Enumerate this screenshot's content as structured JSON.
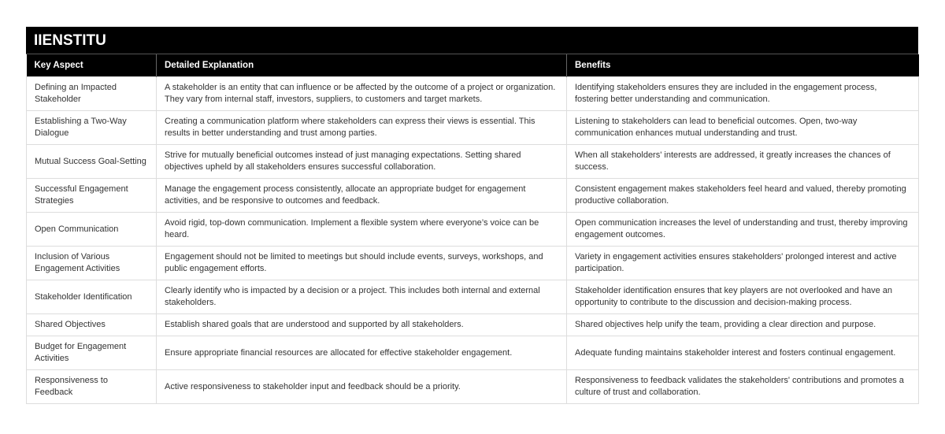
{
  "title": "IIENSTITU",
  "headers": [
    "Key Aspect",
    "Detailed Explanation",
    "Benefits"
  ],
  "rows": [
    {
      "aspect": "Defining an Impacted Stakeholder",
      "explanation": "A stakeholder is an entity that can influence or be affected by the outcome of a project or organization. They vary from internal staff, investors, suppliers, to customers and target markets.",
      "benefits": "Identifying stakeholders ensures they are included in the engagement process, fostering better understanding and communication."
    },
    {
      "aspect": "Establishing a Two-Way Dialogue",
      "explanation": "Creating a communication platform where stakeholders can express their views is essential. This results in better understanding and trust among parties.",
      "benefits": "Listening to stakeholders can lead to beneficial outcomes. Open, two-way communication enhances mutual understanding and trust."
    },
    {
      "aspect": "Mutual Success Goal-Setting",
      "explanation": "Strive for mutually beneficial outcomes instead of just managing expectations. Setting shared objectives upheld by all stakeholders ensures successful collaboration.",
      "benefits": "When all stakeholders' interests are addressed, it greatly increases the chances of success."
    },
    {
      "aspect": "Successful Engagement Strategies",
      "explanation": "Manage the engagement process consistently, allocate an appropriate budget for engagement activities, and be responsive to outcomes and feedback.",
      "benefits": "Consistent engagement makes stakeholders feel heard and valued, thereby promoting productive collaboration."
    },
    {
      "aspect": "Open Communication",
      "explanation": "Avoid rigid, top-down communication. Implement a flexible system where everyone’s voice can be heard.",
      "benefits": "Open communication increases the level of understanding and trust, thereby improving engagement outcomes."
    },
    {
      "aspect": "Inclusion of Various Engagement Activities",
      "explanation": "Engagement should not be limited to meetings but should include events, surveys, workshops, and public engagement efforts.",
      "benefits": "Variety in engagement activities ensures stakeholders' prolonged interest and active participation."
    },
    {
      "aspect": "Stakeholder Identification",
      "explanation": "Clearly identify who is impacted by a decision or a project. This includes both internal and external stakeholders.",
      "benefits": "Stakeholder identification ensures that key players are not overlooked and have an opportunity to contribute to the discussion and decision-making process."
    },
    {
      "aspect": "Shared Objectives",
      "explanation": "Establish shared goals that are understood and supported by all stakeholders.",
      "benefits": "Shared objectives help unify the team, providing a clear direction and purpose."
    },
    {
      "aspect": "Budget for Engagement Activities",
      "explanation": "Ensure appropriate financial resources are allocated for effective stakeholder engagement.",
      "benefits": "Adequate funding maintains stakeholder interest and fosters continual engagement."
    },
    {
      "aspect": "Responsiveness to Feedback",
      "explanation": "Active responsiveness to stakeholder input and feedback should be a priority.",
      "benefits": "Responsiveness to feedback validates the stakeholders' contributions and promotes a culture of trust and collaboration."
    }
  ]
}
